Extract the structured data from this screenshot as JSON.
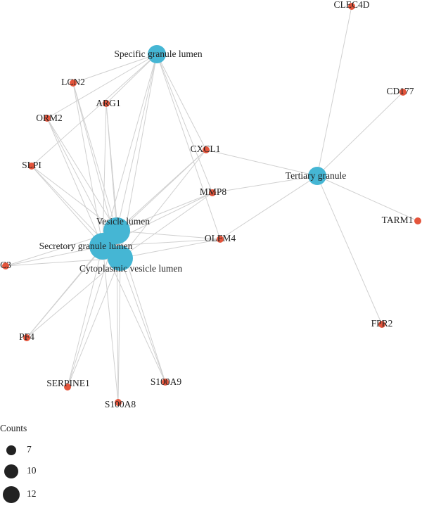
{
  "nodes": [
    {
      "label": "Specific granule lumen"
    },
    {
      "label": "Tertiary granule"
    },
    {
      "label": "Vesicle lumen"
    },
    {
      "label": "Secretory granule lumen"
    },
    {
      "label": "Cytoplasmic vesicle lumen"
    },
    {
      "label": "CLEC4D"
    },
    {
      "label": "CD177"
    },
    {
      "label": "TARM1"
    },
    {
      "label": "FPR2"
    },
    {
      "label": "LCN2"
    },
    {
      "label": "ARG1"
    },
    {
      "label": "ORM2"
    },
    {
      "label": "CXCL1"
    },
    {
      "label": "SLPI"
    },
    {
      "label": "MMP8"
    },
    {
      "label": "OLFM4"
    },
    {
      "label": "C3"
    },
    {
      "label": "PF4"
    },
    {
      "label": "SERPINE1"
    },
    {
      "label": "S100A9"
    },
    {
      "label": "S100A8"
    }
  ],
  "legend": {
    "title": "Counts",
    "sizes": [
      7,
      10,
      12
    ]
  }
}
